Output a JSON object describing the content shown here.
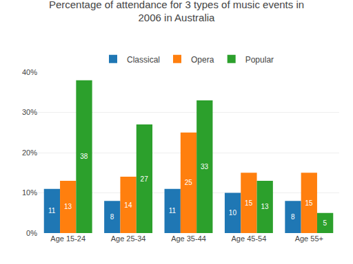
{
  "chart_data": {
    "type": "bar",
    "title": "Percentage of attendance for 3 types of music events in\n2006 in Australia",
    "categories": [
      "Age 15-24",
      "Age 25-34",
      "Age 35-44",
      "Age 45-54",
      "Age 55+"
    ],
    "series": [
      {
        "name": "Classical",
        "values": [
          11,
          8,
          11,
          10,
          8
        ]
      },
      {
        "name": "Opera",
        "values": [
          13,
          14,
          25,
          15,
          15
        ]
      },
      {
        "name": "Popular",
        "values": [
          38,
          27,
          33,
          13,
          5
        ]
      }
    ],
    "ylim": [
      0,
      40
    ],
    "yticks": [
      {
        "value": 0,
        "label": "0%"
      },
      {
        "value": 10,
        "label": "10%"
      },
      {
        "value": 20,
        "label": "20%"
      },
      {
        "value": 30,
        "label": "30%"
      },
      {
        "value": 40,
        "label": "40%"
      }
    ],
    "grid": true,
    "legend": "top",
    "data_labels": true
  }
}
